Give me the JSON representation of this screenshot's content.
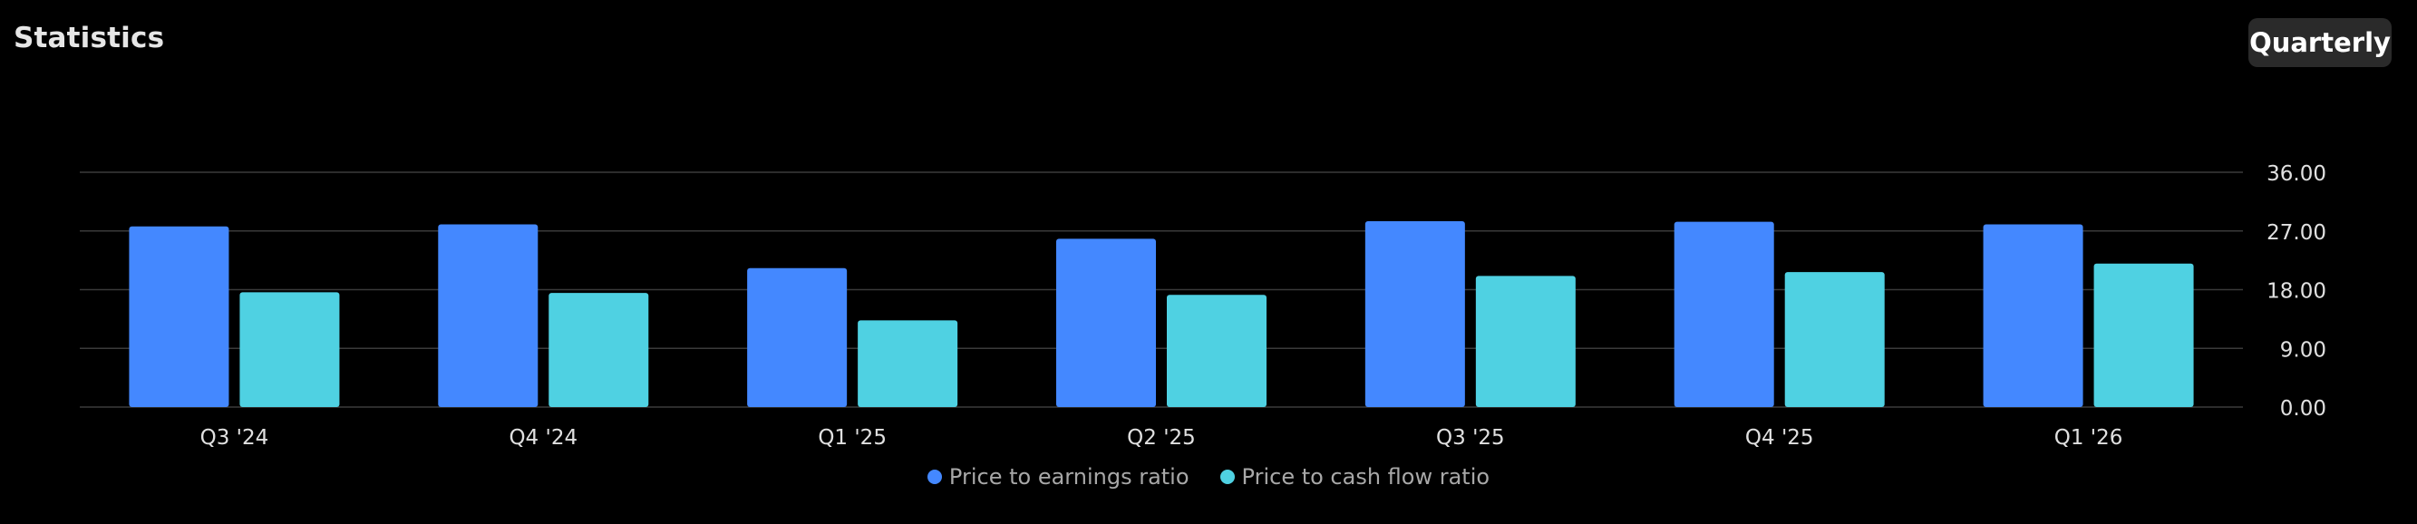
{
  "header": {
    "title": "Statistics",
    "period_label": "Quarterly"
  },
  "colors": {
    "background": "#000000",
    "grid": "#3a3a3a",
    "axis_text": "#e0e0e0",
    "series_pe": "#4488ff",
    "series_pcf": "#4fd1e2"
  },
  "chart_data": {
    "type": "bar",
    "title": "Statistics",
    "xlabel": "",
    "ylabel": "",
    "categories": [
      "Q3 '24",
      "Q4 '24",
      "Q1 '25",
      "Q2 '25",
      "Q3 '25",
      "Q4 '25",
      "Q1 '26"
    ],
    "series": [
      {
        "name": "Price to earnings ratio",
        "color": "#4488ff",
        "values": [
          27.7,
          28.0,
          21.3,
          25.8,
          28.5,
          28.4,
          28.0
        ]
      },
      {
        "name": "Price to cash flow ratio",
        "color": "#4fd1e2",
        "values": [
          17.6,
          17.5,
          13.3,
          17.2,
          20.1,
          20.7,
          22.0
        ]
      }
    ],
    "ylim": [
      0,
      36
    ],
    "yticks": [
      "0.00",
      "9.00",
      "18.00",
      "27.00",
      "36.00"
    ],
    "ytick_values": [
      0,
      9,
      18,
      27,
      36
    ],
    "y_axis_position": "right",
    "grid": true,
    "legend_position": "bottom-center"
  }
}
